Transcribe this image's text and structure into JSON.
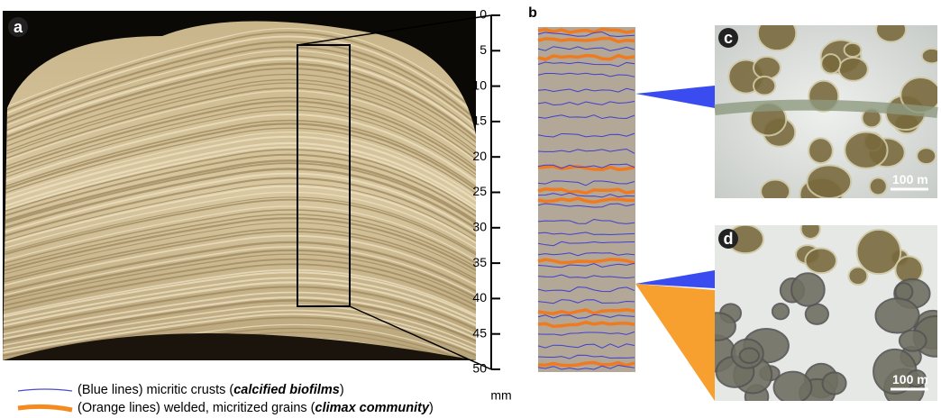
{
  "panels": {
    "a": {
      "label": "a"
    },
    "b": {
      "label": "b",
      "scale": {
        "ticks": [
          0,
          5,
          10,
          15,
          20,
          25,
          30,
          35,
          40,
          45,
          50
        ],
        "unit": "mm"
      }
    },
    "c": {
      "label": "c",
      "scale_bar": "100 m"
    },
    "d": {
      "label": "d",
      "scale_bar": "100 m"
    }
  },
  "legend": [
    {
      "prefix": "(Blue lines) micritic crusts (",
      "emphasis": "calcified biofilms",
      "suffix": ")"
    },
    {
      "prefix": "(Orange lines) welded, micritized grains (",
      "emphasis": "climax community",
      "suffix": ")"
    }
  ]
}
